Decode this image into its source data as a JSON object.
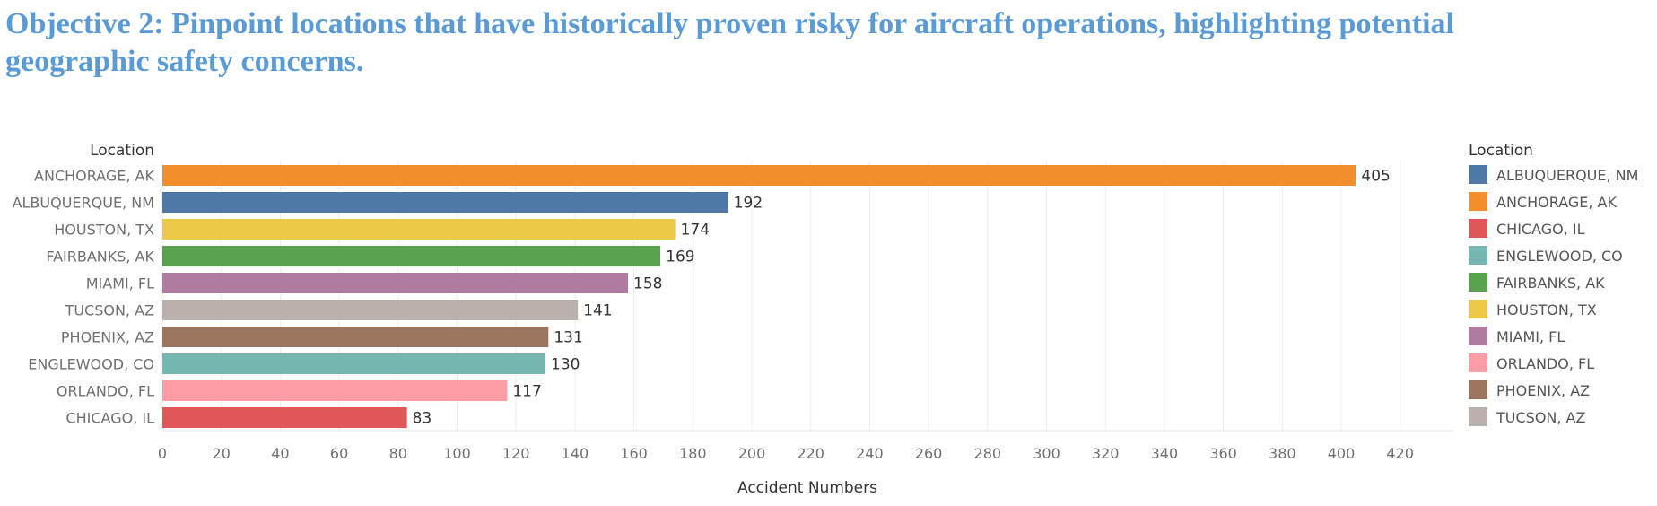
{
  "header": {
    "title": "Objective 2: Pinpoint locations that have historically proven risky for aircraft operations, highlighting potential geographic safety concerns."
  },
  "chart_data": {
    "type": "bar",
    "orientation": "horizontal",
    "title": "Objective 2: Pinpoint locations that have historically proven risky for aircraft operations, highlighting potential geographic safety concerns.",
    "xlabel": "Accident Numbers",
    "ylabel": "Location",
    "xlim": [
      0,
      430
    ],
    "x_ticks": [
      0,
      20,
      40,
      60,
      80,
      100,
      120,
      140,
      160,
      180,
      200,
      220,
      240,
      260,
      280,
      300,
      320,
      340,
      360,
      380,
      400,
      420
    ],
    "categories": [
      "ANCHORAGE, AK",
      "ALBUQUERQUE, NM",
      "HOUSTON, TX",
      "FAIRBANKS, AK",
      "MIAMI, FL",
      "TUCSON, AZ",
      "PHOENIX, AZ",
      "ENGLEWOOD, CO",
      "ORLANDO, FL",
      "CHICAGO, IL"
    ],
    "values": [
      405,
      192,
      174,
      169,
      158,
      141,
      131,
      130,
      117,
      83
    ],
    "grid": "vertical",
    "legend": {
      "title": "Location",
      "placement": "right",
      "items": [
        {
          "label": "ALBUQUERQUE, NM",
          "color": "#4E79A7"
        },
        {
          "label": "ANCHORAGE, AK",
          "color": "#F28E2B"
        },
        {
          "label": "CHICAGO, IL",
          "color": "#E15759"
        },
        {
          "label": "ENGLEWOOD, CO",
          "color": "#76B7B2"
        },
        {
          "label": "FAIRBANKS, AK",
          "color": "#59A14F"
        },
        {
          "label": "HOUSTON, TX",
          "color": "#EDC948"
        },
        {
          "label": "MIAMI, FL",
          "color": "#B07AA1"
        },
        {
          "label": "ORLANDO, FL",
          "color": "#FF9DA7"
        },
        {
          "label": "PHOENIX, AZ",
          "color": "#9C755F"
        },
        {
          "label": "TUCSON, AZ",
          "color": "#BAB0AC"
        }
      ]
    }
  }
}
